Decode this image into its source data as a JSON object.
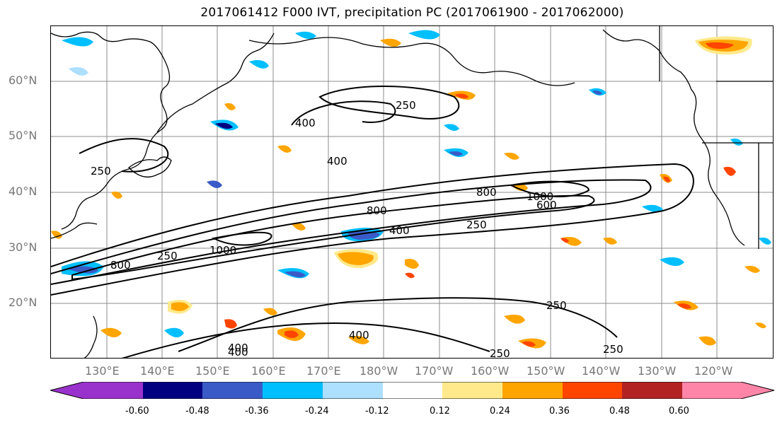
{
  "title": "2017061412 F000 IVT, precipitation PC (2017061900 - 2017062000)",
  "lat_labels": [
    "60°N",
    "50°N",
    "40°N",
    "30°N",
    "20°N"
  ],
  "lon_labels": [
    "130°E",
    "140°E",
    "150°E",
    "160°E",
    "170°E",
    "180°W",
    "170°W",
    "160°W",
    "150°W",
    "140°W",
    "130°W",
    "120°W"
  ],
  "contour_labels": [
    "250",
    "400",
    "400",
    "250",
    "1000",
    "800",
    "400",
    "250",
    "800",
    "1000",
    "800",
    "400",
    "250",
    "400",
    "400",
    "250",
    "250",
    "250",
    "600"
  ],
  "colorbar": {
    "colors": [
      "#9932CC",
      "#000080",
      "#3A5BC7",
      "#00BFFF",
      "#ADDFFF",
      "#FFFFFF",
      "#FFE98A",
      "#FFA500",
      "#FF4500",
      "#B22222",
      "#FF85A8"
    ],
    "tick_labels": [
      "-0.60",
      "-0.48",
      "-0.36",
      "-0.24",
      "-0.12",
      "0.12",
      "0.24",
      "0.36",
      "0.48",
      "0.60"
    ]
  },
  "colors": {
    "coast": "#000000",
    "contour": "#000000",
    "grid": "#8c8c8c",
    "axis_label": "#777777"
  }
}
